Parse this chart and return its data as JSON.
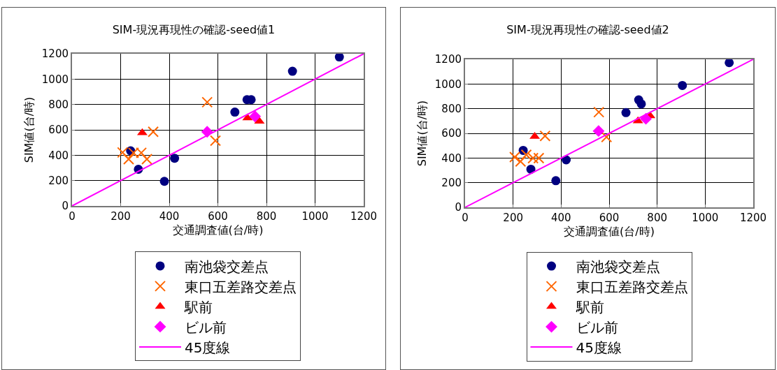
{
  "chart_data": [
    {
      "type": "scatter",
      "title": "SIM-現況再現性の確認-seed値1",
      "xlabel": "交通調査値(台/時)",
      "ylabel": "SIM値(台/時)",
      "xlim": [
        0,
        1200
      ],
      "ylim": [
        0,
        1200
      ],
      "xticks": [
        0,
        200,
        400,
        600,
        800,
        1000,
        1200
      ],
      "yticks": [
        0,
        200,
        400,
        600,
        800,
        1000,
        1200
      ],
      "grid": true,
      "legend": "bottom",
      "series": [
        {
          "name": "南池袋交差点",
          "color": "#000080",
          "marker": "circle",
          "x": [
            1100,
            907,
            720,
            737,
            670,
            241,
            273,
            422,
            380
          ],
          "values": [
            1175,
            1062,
            838,
            838,
            740,
            435,
            289,
            376,
            194
          ]
        },
        {
          "name": "東口五差路交差点",
          "color": "#ff6600",
          "marker": "cross",
          "x": [
            556,
            590,
            334,
            208,
            233,
            253,
            285,
            308
          ],
          "values": [
            818,
            515,
            585,
            422,
            369,
            419,
            419,
            369
          ]
        },
        {
          "name": "駅前",
          "color": "#ff0000",
          "marker": "triangle",
          "x": [
            289,
            722,
            771
          ],
          "values": [
            577,
            693,
            668
          ]
        },
        {
          "name": "ビル前",
          "color": "#ff00ff",
          "marker": "diamond",
          "x": [
            556,
            753
          ],
          "values": [
            585,
            706
          ]
        },
        {
          "name": "45度線",
          "type": "line",
          "color": "#ff00ff",
          "marker": "none",
          "x": [
            0,
            1200
          ],
          "values": [
            0,
            1200
          ]
        }
      ]
    },
    {
      "type": "scatter",
      "title": "SIM-現況再現性の確認-seed値2",
      "xlabel": "交通調査値(台/時)",
      "ylabel": "SIM値(台/時)",
      "xlim": [
        0,
        1200
      ],
      "ylim": [
        0,
        1200
      ],
      "xticks": [
        0,
        200,
        400,
        600,
        800,
        1000,
        1200
      ],
      "yticks": [
        0,
        200,
        400,
        600,
        800,
        1000,
        1200
      ],
      "grid": true,
      "legend": "bottom",
      "series": [
        {
          "name": "南池袋交差点",
          "color": "#000080",
          "marker": "circle",
          "x": [
            1100,
            905,
            723,
            734,
            670,
            242,
            274,
            421,
            378
          ],
          "values": [
            1173,
            988,
            871,
            838,
            768,
            462,
            309,
            385,
            216
          ]
        },
        {
          "name": "東口五差路交差点",
          "color": "#ff6600",
          "marker": "cross",
          "x": [
            557,
            589,
            333,
            207,
            231,
            255,
            283,
            307
          ],
          "values": [
            772,
            570,
            579,
            408,
            372,
            426,
            399,
            399
          ]
        },
        {
          "name": "駅前",
          "color": "#ff0000",
          "marker": "triangle",
          "x": [
            290,
            720,
            771
          ],
          "values": [
            574,
            700,
            741
          ]
        },
        {
          "name": "ビル前",
          "color": "#ff00ff",
          "marker": "diamond",
          "x": [
            556,
            753
          ],
          "values": [
            619,
            718
          ]
        },
        {
          "name": "45度線",
          "type": "line",
          "color": "#ff00ff",
          "marker": "none",
          "x": [
            0,
            1200
          ],
          "values": [
            0,
            1200
          ]
        }
      ]
    }
  ]
}
